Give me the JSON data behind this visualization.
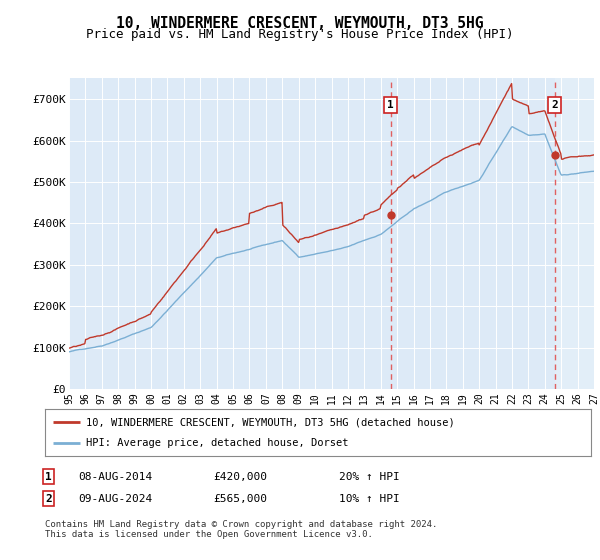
{
  "title": "10, WINDERMERE CRESCENT, WEYMOUTH, DT3 5HG",
  "subtitle": "Price paid vs. HM Land Registry's House Price Index (HPI)",
  "ylim": [
    0,
    750000
  ],
  "yticks": [
    0,
    100000,
    200000,
    300000,
    400000,
    500000,
    600000,
    700000
  ],
  "ytick_labels": [
    "£0",
    "£100K",
    "£200K",
    "£300K",
    "£400K",
    "£500K",
    "£600K",
    "£700K"
  ],
  "xlim_start": 1995,
  "xlim_end": 2027,
  "xticks": [
    1995,
    1996,
    1997,
    1998,
    1999,
    2000,
    2001,
    2002,
    2003,
    2004,
    2005,
    2006,
    2007,
    2008,
    2009,
    2010,
    2011,
    2012,
    2013,
    2014,
    2015,
    2016,
    2017,
    2018,
    2019,
    2020,
    2021,
    2022,
    2023,
    2024,
    2025,
    2026,
    2027
  ],
  "xtick_labels": [
    "95",
    "96",
    "97",
    "98",
    "99",
    "00",
    "01",
    "02",
    "03",
    "04",
    "05",
    "06",
    "07",
    "08",
    "09",
    "10",
    "11",
    "12",
    "13",
    "14",
    "15",
    "16",
    "17",
    "18",
    "19",
    "20",
    "21",
    "22",
    "23",
    "24",
    "25",
    "26",
    "27"
  ],
  "hpi_color": "#7bafd4",
  "price_color": "#c0392b",
  "background_color": "#ddeaf7",
  "marker1_year": 2014.6,
  "marker1_price": 420000,
  "marker2_year": 2024.6,
  "marker2_price": 565000,
  "legend_line1": "10, WINDERMERE CRESCENT, WEYMOUTH, DT3 5HG (detached house)",
  "legend_line2": "HPI: Average price, detached house, Dorset",
  "footer_note": "Contains HM Land Registry data © Crown copyright and database right 2024.\nThis data is licensed under the Open Government Licence v3.0."
}
